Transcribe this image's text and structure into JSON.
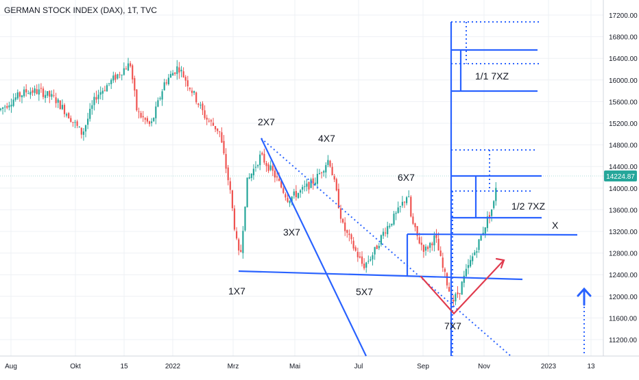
{
  "chart_data": {
    "type": "candlestick",
    "title": "GERMAN STOCK INDEX (DAX), 1T, TVC",
    "last_price": "14224.87",
    "y_axis": {
      "ticks": [
        "17200.00",
        "16800.00",
        "16400.00",
        "16000.00",
        "15600.00",
        "15200.00",
        "14800.00",
        "14400.00",
        "14000.00",
        "13600.00",
        "13200.00",
        "12800.00",
        "12400.00",
        "12000.00",
        "11600.00",
        "11200.00"
      ],
      "ylim": [
        10900,
        17500
      ]
    },
    "x_axis": {
      "ticks": [
        "Aug",
        "Okt",
        "15",
        "2022",
        "Mrz",
        "Mai",
        "Jul",
        "Sep",
        "Nov",
        "2023",
        "13"
      ]
    },
    "price_path_approx": [
      [
        0,
        15450
      ],
      [
        20,
        15650
      ],
      [
        40,
        15800
      ],
      [
        60,
        15780
      ],
      [
        80,
        15650
      ],
      [
        100,
        15350
      ],
      [
        120,
        15000
      ],
      [
        140,
        15700
      ],
      [
        160,
        15950
      ],
      [
        180,
        16200
      ],
      [
        190,
        16300
      ],
      [
        200,
        15400
      ],
      [
        220,
        15150
      ],
      [
        240,
        15950
      ],
      [
        260,
        16250
      ],
      [
        280,
        15800
      ],
      [
        300,
        15300
      ],
      [
        320,
        15050
      ],
      [
        335,
        14000
      ],
      [
        345,
        13000
      ],
      [
        350,
        12650
      ],
      [
        360,
        14100
      ],
      [
        380,
        14600
      ],
      [
        400,
        14250
      ],
      [
        420,
        13800
      ],
      [
        440,
        13950
      ],
      [
        460,
        14150
      ],
      [
        480,
        14550
      ],
      [
        490,
        13950
      ],
      [
        500,
        13300
      ],
      [
        520,
        12800
      ],
      [
        530,
        12550
      ],
      [
        545,
        12800
      ],
      [
        560,
        13200
      ],
      [
        580,
        13550
      ],
      [
        595,
        13900
      ],
      [
        600,
        13400
      ],
      [
        610,
        13050
      ],
      [
        620,
        12850
      ],
      [
        635,
        13100
      ],
      [
        645,
        12550
      ],
      [
        660,
        11900
      ],
      [
        670,
        12100
      ],
      [
        680,
        12450
      ],
      [
        690,
        12750
      ],
      [
        700,
        13050
      ],
      [
        710,
        13400
      ],
      [
        720,
        13700
      ],
      [
        725,
        14220
      ]
    ],
    "wave_labels": [
      "1X7",
      "2X7",
      "3X7",
      "4X7",
      "5X7",
      "6X7",
      "7X7"
    ],
    "annotations": [
      "1/1 7XZ",
      "1/2 7XZ",
      "X"
    ],
    "colors": {
      "up": "#26a69a",
      "down": "#ef5350",
      "lines": "#2962ff",
      "red_v": "#e03b4e",
      "price_line": "#26a69a",
      "grid": "#eef0f4"
    }
  }
}
